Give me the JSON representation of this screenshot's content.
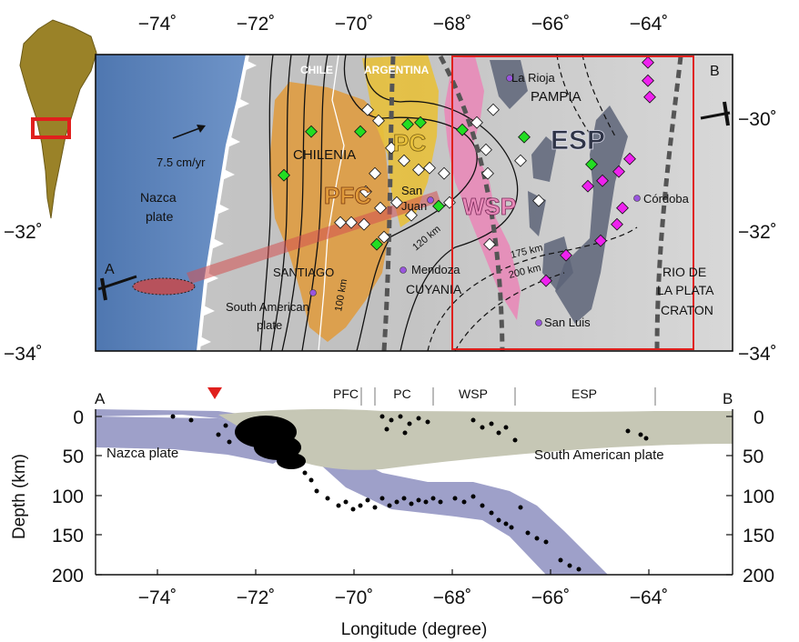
{
  "map": {
    "lon_ticks": [
      "−74˚",
      "−72˚",
      "−70˚",
      "−68˚",
      "−66˚",
      "−64˚"
    ],
    "lat_ticks_left": [
      "−32˚",
      "−34˚"
    ],
    "lat_ticks_right": [
      "−30˚",
      "−32˚",
      "−34˚"
    ],
    "country_labels": [
      "CHILE",
      "ARGENTINA"
    ],
    "terranes": {
      "chilenia": "CHILENIA",
      "cuyania": "CUYANIA",
      "pampia": "PAMPIA",
      "rio_de_la_plata_1": "RIO DE",
      "rio_de_la_plata_2": "LA PLATA",
      "rio_de_la_plata_3": "CRATON"
    },
    "provinces": {
      "pfc": "PFC",
      "pc": "PC",
      "wsp": "WSP",
      "esp": "ESP"
    },
    "cities": {
      "la_rioja": "La Rioja",
      "san_juan_1": "San",
      "san_juan_2": "Juan",
      "cordoba": "Córdoba",
      "mendoza": "Mendoza",
      "santiago": "SANTIAGO",
      "san_luis": "San Luis"
    },
    "plates": {
      "nazca_1": "Nazca",
      "nazca_2": "plate",
      "south_american_1": "South American",
      "south_american_2": "plate"
    },
    "velocity": "7.5 cm/yr",
    "contours": [
      "100 km",
      "120 km",
      "175 km",
      "200 km"
    ],
    "profile_ends": {
      "start": "A",
      "end": "B"
    },
    "colors": {
      "ocean": "#5a7fb5",
      "pfc": "#e09a3a",
      "pc": "#e7c03b",
      "wsp": "#e889b8",
      "esp": "#5d6478",
      "terrane_text": "#1c1ca3",
      "study_box": "#e0201d",
      "green_station": "#22dd22",
      "magenta_station": "#ee22ee",
      "city": "#9955dd"
    }
  },
  "cross_section": {
    "segment_labels": [
      "PFC",
      "PC",
      "WSP",
      "ESP"
    ],
    "ends": {
      "start": "A",
      "end": "B"
    },
    "nazca_label": "Nazca plate",
    "south_american_label": "South American plate",
    "depth_ticks": [
      "0",
      "50",
      "100",
      "150",
      "200"
    ],
    "lon_ticks": [
      "−74˚",
      "−72˚",
      "−70˚",
      "−68˚",
      "−66˚",
      "−64˚"
    ],
    "xlabel": "Longitude (degree)",
    "ylabel": "Depth (km)",
    "colors": {
      "slab": "#8d8fc0",
      "crust": "#c6c7b5"
    }
  }
}
